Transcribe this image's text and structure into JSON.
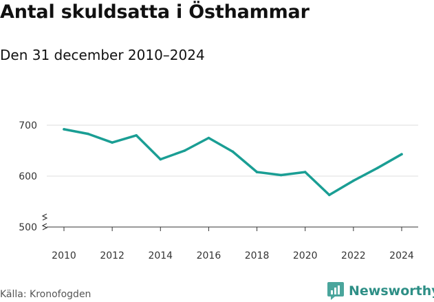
{
  "header": {
    "title": "Antal skuldsatta i Östhammar",
    "subtitle": "Den 31 december 2010–2024"
  },
  "footer": {
    "source": "Källa: Kronofogden",
    "brand": "Newsworthy"
  },
  "colors": {
    "line": "#1a9e94",
    "grid": "#dddddd",
    "axis": "#333333",
    "brand": "#2e8f86"
  },
  "chart_data": {
    "type": "line",
    "title": "Antal skuldsatta i Östhammar",
    "subtitle": "Den 31 december 2010–2024",
    "xlabel": "",
    "ylabel": "",
    "x": [
      2010,
      2011,
      2012,
      2013,
      2014,
      2015,
      2016,
      2017,
      2018,
      2019,
      2020,
      2021,
      2022,
      2023,
      2024
    ],
    "series": [
      {
        "name": "Antal skuldsatta",
        "values": [
          692,
          683,
          666,
          680,
          633,
          650,
          675,
          648,
          608,
          602,
          608,
          563,
          591,
          616,
          643
        ]
      }
    ],
    "xlim": [
      2010,
      2024
    ],
    "ylim": [
      500,
      700
    ],
    "xticks": [
      "2010",
      "2012",
      "2014",
      "2016",
      "2018",
      "2020",
      "2022",
      "2024"
    ],
    "yticks": [
      "500",
      "600",
      "700"
    ],
    "grid": true,
    "axis_break": true
  }
}
